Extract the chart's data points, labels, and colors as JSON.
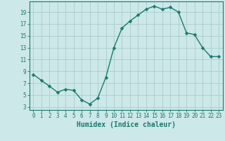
{
  "x": [
    0,
    1,
    2,
    3,
    4,
    5,
    6,
    7,
    8,
    9,
    10,
    11,
    12,
    13,
    14,
    15,
    16,
    17,
    18,
    19,
    20,
    21,
    22,
    23
  ],
  "y": [
    8.5,
    7.5,
    6.5,
    5.5,
    6.0,
    5.8,
    4.2,
    3.5,
    4.5,
    8.0,
    13.0,
    16.3,
    17.5,
    18.5,
    19.5,
    20.0,
    19.5,
    19.8,
    19.0,
    15.5,
    15.2,
    13.0,
    11.5,
    11.5
  ],
  "line_color": "#1a7a6e",
  "marker": "D",
  "marker_size": 2.5,
  "bg_color": "#cce8e8",
  "grid_color": "#b0d0d0",
  "xlabel": "Humidex (Indice chaleur)",
  "ylabel": "",
  "xlim": [
    -0.5,
    23.5
  ],
  "ylim": [
    2.5,
    20.8
  ],
  "yticks": [
    3,
    5,
    7,
    9,
    11,
    13,
    15,
    17,
    19
  ],
  "xticks": [
    0,
    1,
    2,
    3,
    4,
    5,
    6,
    7,
    8,
    9,
    10,
    11,
    12,
    13,
    14,
    15,
    16,
    17,
    18,
    19,
    20,
    21,
    22,
    23
  ],
  "tick_color": "#1a7a6e",
  "label_color": "#1a7a6e",
  "axis_color": "#1a7a6e"
}
